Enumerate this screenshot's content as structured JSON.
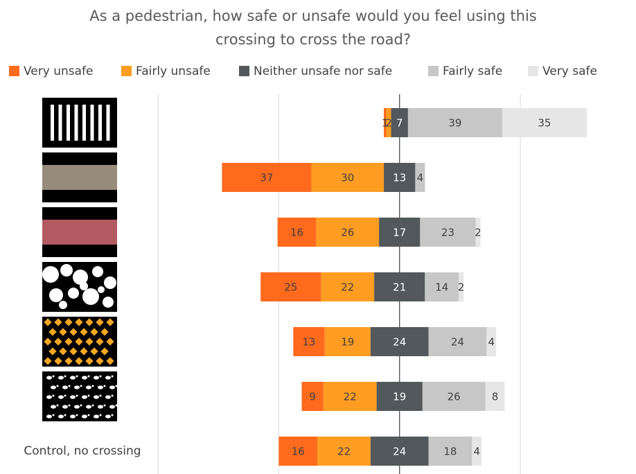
{
  "chart_data": {
    "type": "diverging_stacked_bar",
    "title": [
      "As a pedestrian, how safe or unsafe would you feel using this",
      "crossing to cross the road?"
    ],
    "categories": [
      null,
      null,
      null,
      null,
      null,
      null,
      "Control, no crossing"
    ],
    "series": [
      {
        "name": "Very unsafe",
        "color": "#ff6a1c",
        "values": [
          1,
          37,
          16,
          25,
          13,
          9,
          16
        ]
      },
      {
        "name": "Fairly unsafe",
        "color": "#ff9d22",
        "values": [
          2,
          30,
          26,
          22,
          19,
          22,
          22
        ]
      },
      {
        "name": "Neither unsafe nor safe",
        "color": "#52585b",
        "values": [
          7,
          13,
          17,
          21,
          24,
          19,
          24
        ]
      },
      {
        "name": "Fairly safe",
        "color": "#c7c7c7",
        "values": [
          39,
          4,
          23,
          14,
          24,
          26,
          18
        ]
      },
      {
        "name": "Very safe",
        "color": "#e6e6e6",
        "values": [
          35,
          0,
          2,
          2,
          4,
          8,
          4
        ]
      }
    ],
    "center_series": 2,
    "xlim": [
      -100,
      95
    ],
    "xticks": [
      -100,
      -50,
      0,
      50
    ],
    "tick_labels": false,
    "grid": true,
    "legend": "top"
  }
}
